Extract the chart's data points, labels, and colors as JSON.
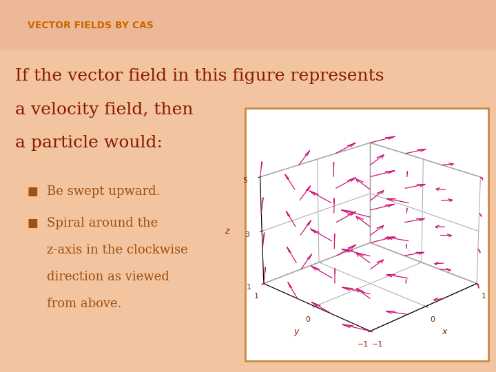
{
  "title": "VECTOR FIELDS BY CAS",
  "title_color": "#CC6600",
  "bg_color": "#F2C4A0",
  "bg_top_color": "#EDB898",
  "main_text_color": "#8B1A00",
  "bullet_text_color": "#A05010",
  "main_text_lines": [
    "If the vector field in this figure represents",
    "a velocity field, then",
    "a particle would:"
  ],
  "bullet_lines": [
    "Be swept upward.",
    "Spiral around the",
    "z-axis in the clockwise",
    "direction as viewed",
    "from above."
  ],
  "plot_bg": "#FFFFFF",
  "plot_border_color": "#CC8844",
  "arrow_color": "#CC1177",
  "xlabel": "x",
  "ylabel": "y",
  "zlabel": "z",
  "main_text_fontsize": 18,
  "bullet_fontsize": 13,
  "title_fontsize": 10,
  "elev": 22,
  "azim": 225
}
